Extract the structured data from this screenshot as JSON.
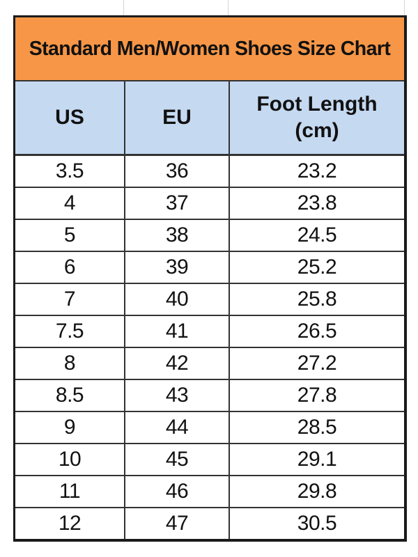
{
  "title": "Standard Men/Women Shoes Size Chart",
  "colors": {
    "title_bg": "#f79646",
    "header_bg": "#c5d9f1"
  },
  "columns": [
    "US",
    "EU",
    "Foot Length\n(cm)"
  ],
  "columns_display": {
    "us": "US",
    "eu": "EU",
    "foot_line1": "Foot Length",
    "foot_line2": "(cm)"
  },
  "rows": [
    [
      "3.5",
      "36",
      "23.2"
    ],
    [
      "4",
      "37",
      "23.8"
    ],
    [
      "5",
      "38",
      "24.5"
    ],
    [
      "6",
      "39",
      "25.2"
    ],
    [
      "7",
      "40",
      "25.8"
    ],
    [
      "7.5",
      "41",
      "26.5"
    ],
    [
      "8",
      "42",
      "27.2"
    ],
    [
      "8.5",
      "43",
      "27.8"
    ],
    [
      "9",
      "44",
      "28.5"
    ],
    [
      "10",
      "45",
      "29.1"
    ],
    [
      "11",
      "46",
      "29.8"
    ],
    [
      "12",
      "47",
      "30.5"
    ]
  ]
}
